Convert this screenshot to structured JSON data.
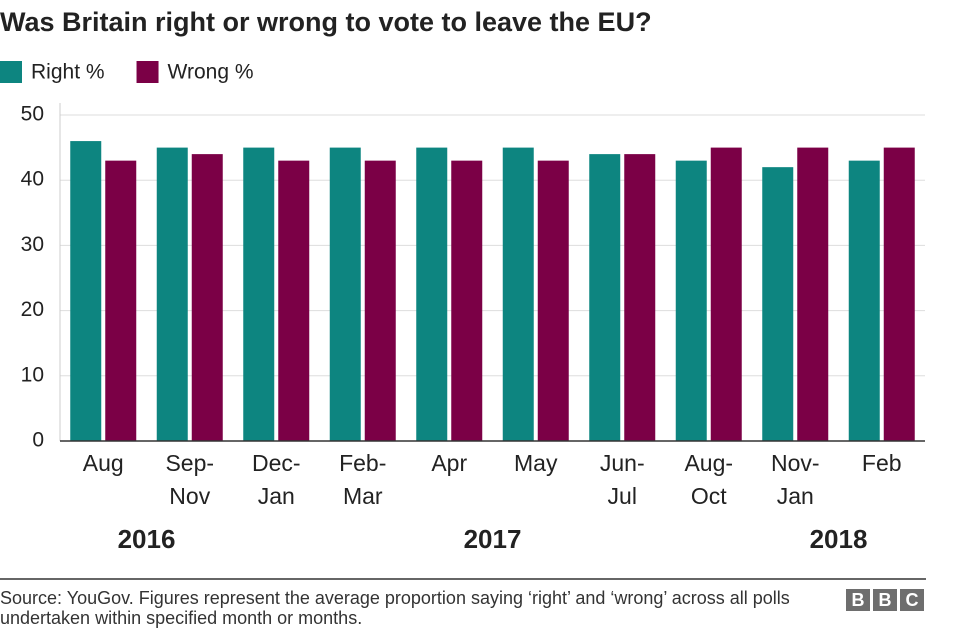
{
  "chart_data": {
    "type": "bar",
    "title": "Was Britain right or wrong to vote to leave the EU?",
    "categories": [
      "Aug",
      "Sep-Nov",
      "Dec-Jan",
      "Feb-Mar",
      "Apr",
      "May",
      "Jun-Jul",
      "Aug-Oct",
      "Nov-Jan",
      "Feb"
    ],
    "year_groups": [
      {
        "label": "2016",
        "count": 2
      },
      {
        "label": "2017",
        "count": 6
      },
      {
        "label": "2018",
        "count": 2
      }
    ],
    "series": [
      {
        "name": "Right %",
        "color": "#0d8580",
        "values": [
          46,
          45,
          45,
          45,
          45,
          45,
          44,
          43,
          42,
          43
        ]
      },
      {
        "name": "Wrong %",
        "color": "#7b0046",
        "values": [
          43,
          44,
          43,
          43,
          43,
          43,
          44,
          45,
          45,
          45
        ]
      }
    ],
    "ylim": [
      0,
      50
    ],
    "yticks": [
      0,
      10,
      20,
      30,
      40,
      50
    ],
    "grid": true,
    "source": "Source: YouGov. Figures represent the average proportion saying ‘right’ and ‘wrong’ across all polls undertaken within specified month or months.",
    "logo": "BBC"
  }
}
